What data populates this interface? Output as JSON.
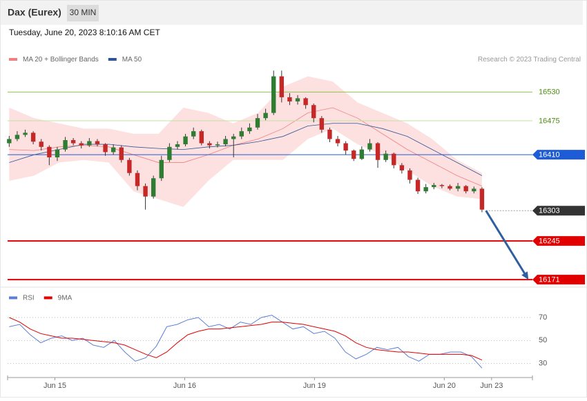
{
  "header": {
    "title": "Dax (Eurex)",
    "interval": "30 MIN",
    "timestamp": "Tuesday, June 20, 2023 8:10:16 AM CET"
  },
  "chart_data": [
    {
      "type": "candlestick",
      "source": "Research © 2023 Trading Central",
      "up_color": "#2e7d32",
      "down_color": "#c62828",
      "ylim": [
        16158,
        16574
      ],
      "xlim": [
        -0.2,
        65.3
      ],
      "candles": [
        [
          16432,
          16446,
          16425,
          16440
        ],
        [
          16440,
          16455,
          16436,
          16448
        ],
        [
          16448,
          16458,
          16444,
          16452
        ],
        [
          16452,
          16455,
          16430,
          16435
        ],
        [
          16435,
          16440,
          16418,
          16425
        ],
        [
          16425,
          16428,
          16390,
          16405
        ],
        [
          16405,
          16425,
          16398,
          16420
        ],
        [
          16420,
          16444,
          16416,
          16438
        ],
        [
          16438,
          16442,
          16428,
          16432
        ],
        [
          16432,
          16436,
          16422,
          16428
        ],
        [
          16428,
          16442,
          16425,
          16436
        ],
        [
          16436,
          16440,
          16426,
          16430
        ],
        [
          16430,
          16432,
          16408,
          16415
        ],
        [
          16415,
          16430,
          16410,
          16424
        ],
        [
          16424,
          16428,
          16395,
          16400
        ],
        [
          16400,
          16404,
          16370,
          16375
        ],
        [
          16375,
          16380,
          16342,
          16350
        ],
        [
          16350,
          16355,
          16305,
          16330
        ],
        [
          16330,
          16370,
          16326,
          16365
        ],
        [
          16365,
          16408,
          16360,
          16400
        ],
        [
          16400,
          16432,
          16396,
          16425
        ],
        [
          16425,
          16436,
          16420,
          16430
        ],
        [
          16430,
          16450,
          16426,
          16445
        ],
        [
          16445,
          16462,
          16440,
          16455
        ],
        [
          16455,
          16458,
          16428,
          16432
        ],
        [
          16432,
          16436,
          16422,
          16428
        ],
        [
          16428,
          16435,
          16424,
          16430
        ],
        [
          16430,
          16446,
          16426,
          16440
        ],
        [
          16440,
          16450,
          16405,
          16445
        ],
        [
          16445,
          16462,
          16440,
          16455
        ],
        [
          16455,
          16470,
          16450,
          16462
        ],
        [
          16462,
          16488,
          16458,
          16480
        ],
        [
          16480,
          16498,
          16476,
          16490
        ],
        [
          16490,
          16571,
          16486,
          16560
        ],
        [
          16560,
          16571,
          16510,
          16520
        ],
        [
          16520,
          16528,
          16505,
          16512
        ],
        [
          16512,
          16524,
          16506,
          16518
        ],
        [
          16518,
          16520,
          16498,
          16505
        ],
        [
          16505,
          16508,
          16472,
          16480
        ],
        [
          16480,
          16484,
          16452,
          16458
        ],
        [
          16458,
          16462,
          16434,
          16440
        ],
        [
          16440,
          16446,
          16426,
          16432
        ],
        [
          16432,
          16436,
          16410,
          16418
        ],
        [
          16418,
          16420,
          16398,
          16402
        ],
        [
          16402,
          16426,
          16400,
          16420
        ],
        [
          16420,
          16440,
          16416,
          16432
        ],
        [
          16432,
          16434,
          16385,
          16400
        ],
        [
          16400,
          16418,
          16396,
          16412
        ],
        [
          16412,
          16414,
          16384,
          16390
        ],
        [
          16390,
          16394,
          16374,
          16380
        ],
        [
          16380,
          16384,
          16355,
          16362
        ],
        [
          16362,
          16366,
          16335,
          16340
        ],
        [
          16340,
          16354,
          16336,
          16348
        ],
        [
          16348,
          16356,
          16344,
          16352
        ],
        [
          16352,
          16354,
          16346,
          16350
        ],
        [
          16350,
          16353,
          16342,
          16345
        ],
        [
          16345,
          16356,
          16340,
          16350
        ],
        [
          16350,
          16352,
          16336,
          16340
        ],
        [
          16340,
          16349,
          16336,
          16345
        ],
        [
          16345,
          16348,
          16300,
          16305
        ]
      ],
      "series": [
        {
          "name": "MA 20 + Bollinger Bands",
          "color": "#f08080",
          "band_color": "#fde0e0",
          "values": [
            16420,
            16418,
            16425,
            16428,
            16425,
            16410,
            16395,
            16395,
            16410,
            16428,
            16440,
            16460,
            16490,
            16500,
            16480,
            16450,
            16420,
            16395,
            16370,
            16350
          ],
          "upper": [
            16500,
            16480,
            16470,
            16460,
            16460,
            16450,
            16450,
            16500,
            16490,
            16470,
            16490,
            16540,
            16560,
            16550,
            16510,
            16490,
            16470,
            16440,
            16400,
            16375
          ],
          "lower": [
            16360,
            16370,
            16395,
            16400,
            16395,
            16340,
            16325,
            16310,
            16360,
            16400,
            16400,
            16400,
            16440,
            16460,
            16430,
            16410,
            16380,
            16350,
            16330,
            16325
          ]
        },
        {
          "name": "MA 50",
          "color": "#2f5597",
          "values": [
            16395,
            16410,
            16420,
            16430,
            16430,
            16425,
            16422,
            16420,
            16425,
            16428,
            16435,
            16445,
            16465,
            16470,
            16470,
            16460,
            16445,
            16420,
            16395,
            16370
          ]
        }
      ],
      "levels": [
        {
          "value": 16530,
          "color": "#8bc34a",
          "line": "solid",
          "label_style": "text",
          "label_color": "#4e8f10"
        },
        {
          "value": 16475,
          "color": "#c5e1a5",
          "line": "solid",
          "label_style": "text",
          "label_color": "#4e8f10"
        },
        {
          "value": 16410,
          "color": "#1e5bd6",
          "line": "solid",
          "label_style": "box",
          "label_color": "#1e5bd6"
        },
        {
          "value": 16303,
          "color": "#999999",
          "line": "dotted",
          "label_style": "box",
          "label_color": "#333333"
        },
        {
          "value": 16245,
          "color": "#e00000",
          "line": "thick",
          "label_style": "box",
          "label_color": "#e00000"
        },
        {
          "value": 16171,
          "color": "#e00000",
          "line": "thick",
          "label_style": "box",
          "label_color": "#e00000"
        }
      ],
      "forecast": {
        "x": [
          59.5,
          64.8
        ],
        "y": [
          16303,
          16171
        ],
        "color": "#2f5f9e"
      }
    },
    {
      "type": "line",
      "ylim": [
        22,
        79
      ],
      "xlim": [
        -0.2,
        65.3
      ],
      "yticks": [
        70,
        50,
        30
      ],
      "xticks": [
        {
          "value": 5.7,
          "label": "Jun 15"
        },
        {
          "value": 21.9,
          "label": "Jun 16"
        },
        {
          "value": 38.1,
          "label": "Jun 19"
        },
        {
          "value": 54.3,
          "label": "Jun 20"
        },
        {
          "value": 60.2,
          "label": "Jun 23"
        }
      ],
      "series": [
        {
          "name": "RSI",
          "color": "#5b7fd6",
          "values": [
            62,
            64,
            55,
            48,
            52,
            54,
            50,
            52,
            46,
            44,
            50,
            40,
            32,
            35,
            45,
            62,
            64,
            68,
            70,
            62,
            64,
            60,
            66,
            64,
            70,
            72,
            66,
            60,
            62,
            56,
            58,
            52,
            40,
            34,
            38,
            44,
            42,
            44,
            36,
            32,
            38,
            38,
            40,
            40,
            36,
            26
          ]
        },
        {
          "name": "9MA",
          "color": "#e00000",
          "values": [
            70,
            66,
            60,
            56,
            54,
            52,
            52,
            51,
            50,
            49,
            48,
            46,
            42,
            38,
            35,
            40,
            48,
            55,
            58,
            60,
            60,
            61,
            62,
            63,
            64,
            66,
            66,
            65,
            64,
            62,
            60,
            58,
            54,
            48,
            44,
            42,
            41,
            40,
            40,
            39,
            38,
            38,
            38,
            38,
            37,
            33
          ]
        }
      ]
    }
  ]
}
